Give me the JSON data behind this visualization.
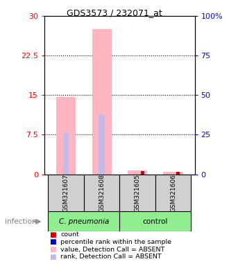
{
  "title": "GDS3573 / 232071_at",
  "samples": [
    "GSM321607",
    "GSM321608",
    "GSM321605",
    "GSM321606"
  ],
  "bar_color_absent": "#ffb6c1",
  "bar_color_rank_absent": "#c8b8e8",
  "bar_color_count": "#cc0000",
  "bar_color_rank": "#0000cc",
  "values_absent": [
    14.6,
    27.5,
    0.7,
    0.5
  ],
  "rank_absent_pct": [
    26.5,
    38.0,
    0.0,
    0.0
  ],
  "count_values": [
    0.0,
    0.0,
    0.55,
    0.45
  ],
  "rank_values_pct": [
    26.5,
    38.0,
    0.0,
    0.0
  ],
  "ylim_left": [
    0,
    30
  ],
  "ylim_right": [
    0,
    100
  ],
  "yticks_left": [
    0,
    7.5,
    15,
    22.5,
    30
  ],
  "ytick_labels_left": [
    "0",
    "7.5",
    "15",
    "22.5",
    "30"
  ],
  "yticks_right": [
    0,
    25,
    50,
    75,
    100
  ],
  "ytick_labels_right": [
    "0",
    "25",
    "50",
    "75",
    "100%"
  ],
  "infection_label": "infection",
  "legend_items": [
    {
      "color": "#cc0000",
      "label": "count"
    },
    {
      "color": "#0000cc",
      "label": "percentile rank within the sample"
    },
    {
      "color": "#ffb6c1",
      "label": "value, Detection Call = ABSENT"
    },
    {
      "color": "#c8b8e8",
      "label": "rank, Detection Call = ABSENT"
    }
  ]
}
